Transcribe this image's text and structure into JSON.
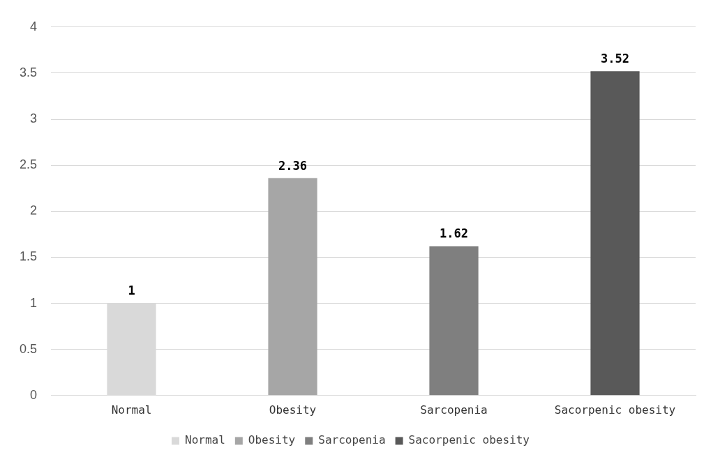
{
  "chart_data": {
    "type": "bar",
    "categories": [
      "Normal",
      "Obesity",
      "Sarcopenia",
      "Sacorpenic obesity"
    ],
    "series": [
      {
        "name": "Normal",
        "color": "#d9d9d9",
        "values": [
          1,
          null,
          null,
          null
        ]
      },
      {
        "name": "Obesity",
        "color": "#a6a6a6",
        "values": [
          null,
          2.36,
          null,
          null
        ]
      },
      {
        "name": "Sarcopenia",
        "color": "#7f7f7f",
        "values": [
          null,
          null,
          1.62,
          null
        ]
      },
      {
        "name": "Sacorpenic obesity",
        "color": "#595959",
        "values": [
          null,
          null,
          null,
          3.52
        ]
      }
    ],
    "ylim": [
      0,
      4
    ],
    "yticks": [
      0,
      0.5,
      1,
      1.5,
      2,
      2.5,
      3,
      3.5,
      4
    ],
    "grid": "y",
    "legend": "bottom",
    "data_labels": true
  }
}
